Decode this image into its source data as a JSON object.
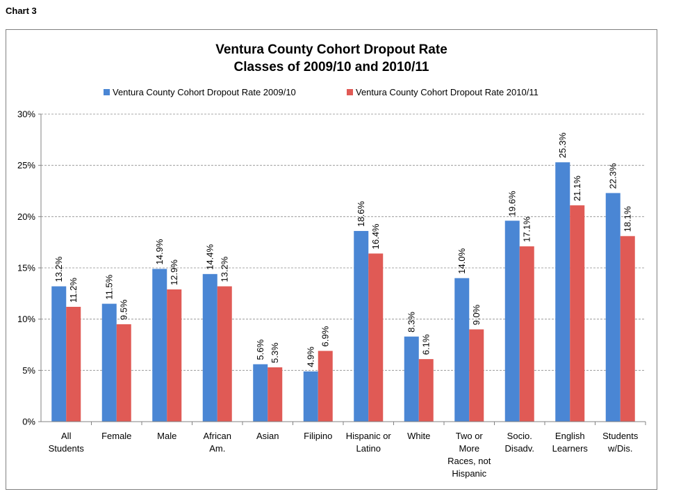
{
  "page_label": "Chart 3",
  "chart_data": {
    "type": "bar",
    "title": "Ventura County Cohort Dropout Rate",
    "subtitle": "Classes of 2009/10 and 2010/11",
    "xlabel": "",
    "ylabel": "",
    "ylim": [
      0,
      30
    ],
    "yticks": [
      "0%",
      "5%",
      "10%",
      "15%",
      "20%",
      "25%",
      "30%"
    ],
    "grid": true,
    "legend_position": "top",
    "categories": [
      [
        "All",
        "Students"
      ],
      [
        "Female"
      ],
      [
        "Male"
      ],
      [
        "African",
        "Am."
      ],
      [
        "Asian"
      ],
      [
        "Filipino"
      ],
      [
        "Hispanic or",
        "Latino"
      ],
      [
        "White"
      ],
      [
        "Two or",
        "More",
        "Races, not",
        "Hispanic"
      ],
      [
        "Socio.",
        "Disadv."
      ],
      [
        "English",
        "Learners"
      ],
      [
        "Students",
        "w/Dis."
      ]
    ],
    "series": [
      {
        "name": "Ventura County Cohort Dropout Rate 2009/10",
        "color": "#4a86d4",
        "values": [
          13.2,
          11.5,
          14.9,
          14.4,
          5.6,
          4.9,
          18.6,
          8.3,
          14.0,
          19.6,
          25.3,
          22.3
        ],
        "labels": [
          "13.2%",
          "11.5%",
          "14.9%",
          "14.4%",
          "5.6%",
          "4.9%",
          "18.6%",
          "8.3%",
          "14.0%",
          "19.6%",
          "25.3%",
          "22.3%"
        ]
      },
      {
        "name": "Ventura County Cohort Dropout Rate 2010/11",
        "color": "#e05a55",
        "values": [
          11.2,
          9.5,
          12.9,
          13.2,
          5.3,
          6.9,
          16.4,
          6.1,
          9.0,
          17.1,
          21.1,
          18.1
        ],
        "labels": [
          "11.2%",
          "9.5%",
          "12.9%",
          "13.2%",
          "5.3%",
          "6.9%",
          "16.4%",
          "6.1%",
          "9.0%",
          "17.1%",
          "21.1%",
          "18.1%"
        ]
      }
    ]
  }
}
